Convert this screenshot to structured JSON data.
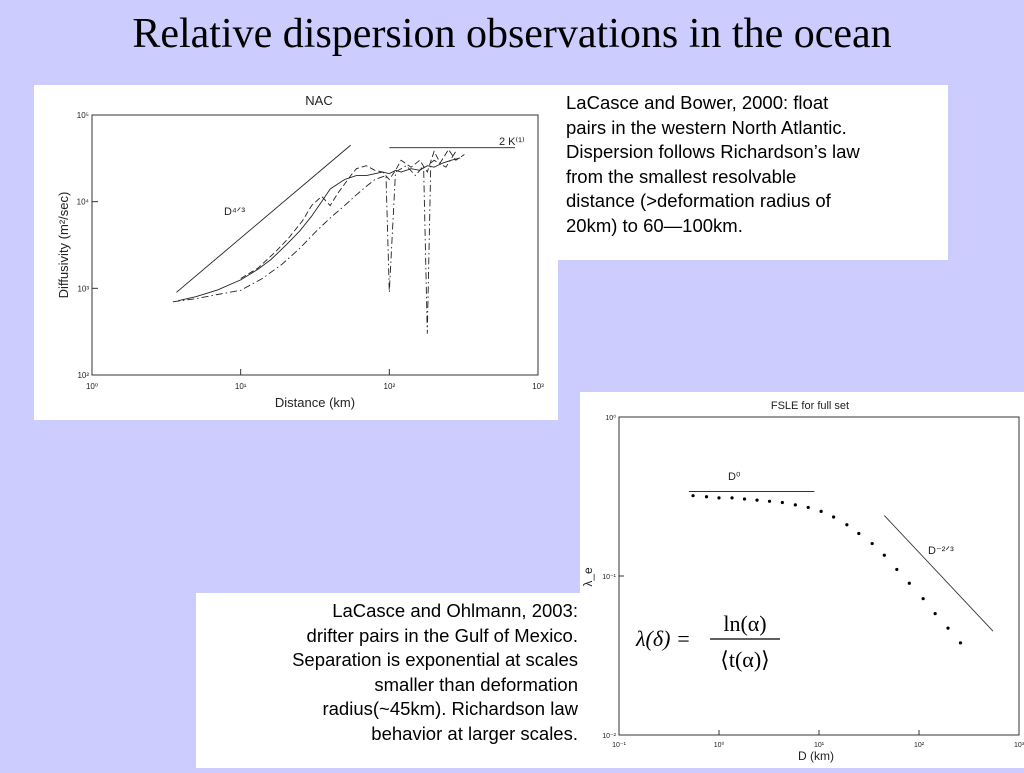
{
  "slide": {
    "title": "Relative dispersion observations in the ocean"
  },
  "caption_top": {
    "lines": [
      "LaCasce and Bower, 2000:  float",
      "pairs in the western North Atlantic.",
      "Dispersion follows Richardson’s law",
      "from the smallest resolvable",
      "distance (>deformation radius of",
      "20km) to 60—100km."
    ]
  },
  "caption_bottom": {
    "lines": [
      "LaCasce and Ohlmann, 2003:",
      "drifter pairs in the Gulf of Mexico.",
      "Separation is exponential at scales",
      "smaller than deformation",
      "radius(~45km).  Richardson law",
      "behavior at larger scales."
    ]
  },
  "formula": {
    "lhs": "λ(δ) =",
    "numerator": "ln(α)",
    "denominator": "⟨t(α)⟩"
  },
  "chart_data": [
    {
      "type": "line",
      "title": "NAC",
      "xlabel": "Distance (km)",
      "ylabel": "Diffusivity (m²/sec)",
      "xscale": "log",
      "yscale": "log",
      "xlim": [
        1,
        1000
      ],
      "ylim": [
        100,
        100000
      ],
      "xticks": [
        "10⁰",
        "10¹",
        "10²",
        "10³"
      ],
      "yticks": [
        "10²",
        "10³",
        "10⁴",
        "10⁵"
      ],
      "annotations": [
        {
          "text": "D⁴ᐟ³",
          "x": 9,
          "y": 9000
        },
        {
          "text": "2 K⁽¹⁾",
          "x": 750,
          "y": 42000
        }
      ],
      "series": [
        {
          "name": "D⁴ᐟ³",
          "style": "solid",
          "x": [
            3.7,
            55
          ],
          "y": [
            900,
            45000
          ]
        },
        {
          "name": "2 K⁽¹⁾",
          "style": "solid",
          "x": [
            100,
            700
          ],
          "y": [
            42000,
            42000
          ]
        },
        {
          "style": "solid",
          "x": [
            3.8,
            5,
            7,
            10,
            13,
            16,
            20,
            25,
            30,
            35,
            40,
            50,
            60,
            70,
            80,
            90,
            100,
            110,
            120,
            140,
            160,
            180,
            200,
            230,
            260,
            300
          ],
          "y": [
            720,
            800,
            960,
            1250,
            1650,
            2150,
            3100,
            4600,
            6800,
            10000,
            14000,
            18000,
            20000,
            20000,
            21000,
            22000,
            21000,
            23000,
            22000,
            24000,
            23000,
            26000,
            25000,
            28000,
            30000,
            32000
          ]
        },
        {
          "style": "dashed",
          "x": [
            10,
            13,
            17,
            21,
            26,
            30,
            35,
            40,
            45,
            50,
            55,
            60,
            70,
            80,
            90,
            100,
            110,
            120,
            140,
            160,
            180,
            200,
            220,
            250,
            280,
            320
          ],
          "y": [
            1300,
            1700,
            2600,
            3800,
            6000,
            9000,
            11500,
            9000,
            12500,
            16000,
            20000,
            24000,
            26000,
            23000,
            22000,
            18000,
            23000,
            30000,
            25000,
            30000,
            22000,
            38000,
            28000,
            40000,
            30000,
            35000
          ]
        },
        {
          "style": "dash-dot",
          "x": [
            3.5,
            5,
            7,
            10,
            14,
            19,
            25,
            32,
            40,
            50,
            60,
            70,
            80,
            95,
            100,
            110,
            130,
            150,
            170,
            180,
            190,
            200,
            240,
            280
          ],
          "y": [
            700,
            760,
            850,
            950,
            1300,
            1900,
            2900,
            4500,
            6500,
            9000,
            12000,
            15000,
            18000,
            20000,
            900,
            22000,
            26000,
            20000,
            26000,
            300,
            28000,
            30000,
            25000,
            38000
          ]
        }
      ]
    },
    {
      "type": "scatter",
      "title": "FSLE for full set",
      "xlabel": "D (km)",
      "ylabel": "λ_e",
      "xscale": "log",
      "yscale": "log",
      "xlim": [
        0.1,
        1000
      ],
      "ylim": [
        0.01,
        1
      ],
      "xticks": [
        "10⁻¹",
        "10⁰",
        "10¹",
        "10²",
        "10³"
      ],
      "yticks": [
        "10⁻²",
        "10⁻¹",
        "10⁰"
      ],
      "annotations": [
        {
          "text": "D⁰",
          "x": 1.6,
          "y": 0.4
        },
        {
          "text": "D⁻²ᐟ³",
          "x": 150,
          "y": 0.14
        }
      ],
      "reference_lines": [
        {
          "name": "D⁰",
          "x": [
            0.5,
            9
          ],
          "y": [
            0.34,
            0.34
          ]
        },
        {
          "name": "D⁻²ᐟ³",
          "x": [
            45,
            550
          ],
          "y": [
            0.24,
            0.045
          ]
        }
      ],
      "series": [
        {
          "name": "FSLE",
          "x": [
            0.55,
            0.75,
            1,
            1.35,
            1.8,
            2.4,
            3.2,
            4.3,
            5.8,
            7.8,
            10.5,
            14,
            19,
            25,
            34,
            45,
            60,
            80,
            110,
            145,
            195,
            260
          ],
          "y": [
            0.32,
            0.315,
            0.31,
            0.31,
            0.305,
            0.3,
            0.295,
            0.29,
            0.28,
            0.27,
            0.255,
            0.235,
            0.21,
            0.185,
            0.16,
            0.135,
            0.11,
            0.09,
            0.072,
            0.058,
            0.047,
            0.038
          ]
        }
      ]
    }
  ]
}
